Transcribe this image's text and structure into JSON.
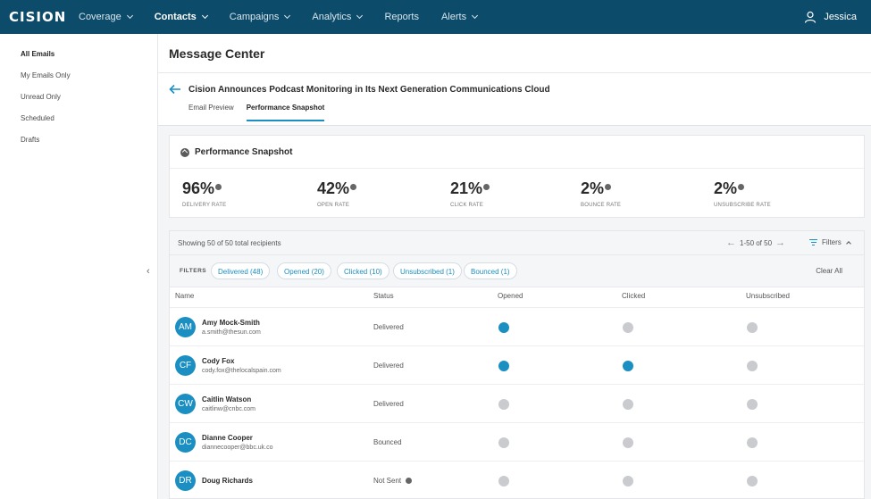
{
  "app": {
    "logo_text": "CISION"
  },
  "nav": {
    "items": [
      {
        "label": "Coverage",
        "dropdown": true,
        "active": false
      },
      {
        "label": "Contacts",
        "dropdown": true,
        "active": true
      },
      {
        "label": "Campaigns",
        "dropdown": true,
        "active": false
      },
      {
        "label": "Analytics",
        "dropdown": true,
        "active": false
      },
      {
        "label": "Reports",
        "dropdown": false,
        "active": false
      },
      {
        "label": "Alerts",
        "dropdown": true,
        "active": false
      }
    ],
    "user_name": "Jessica",
    "user_icon": "user-icon"
  },
  "sidebar": {
    "items": [
      {
        "label": "All Emails",
        "active": true
      },
      {
        "label": "My Emails Only",
        "active": false
      },
      {
        "label": "Unread Only",
        "active": false
      },
      {
        "label": "Scheduled",
        "active": false
      },
      {
        "label": "Drafts",
        "active": false
      }
    ]
  },
  "page": {
    "title": "Message Center"
  },
  "email": {
    "title": "Cision Announces Podcast Monitoring in Its Next Generation Communications Cloud",
    "tabs": [
      {
        "label": "Email Preview",
        "active": false
      },
      {
        "label": "Performance Snapshot",
        "active": true
      }
    ]
  },
  "snapshot": {
    "title": "Performance Snapshot",
    "metrics": [
      {
        "value": "96%",
        "label": "DELIVERY RATE"
      },
      {
        "value": "42%",
        "label": "OPEN RATE"
      },
      {
        "value": "21%",
        "label": "CLICK RATE"
      },
      {
        "value": "2%",
        "label": "BOUNCE RATE"
      },
      {
        "value": "2%",
        "label": "UNSUBSCRIBE RATE"
      }
    ]
  },
  "recipients": {
    "showing": "Showing 50 of 50 total recipients",
    "pager": "1-50 of 50",
    "filters_button": "Filters",
    "filters_label": "FILTERS",
    "chips": [
      "Delivered (48)",
      "Opened (20)",
      "Clicked (10)",
      "Unsubscribed (1)",
      "Bounced (1)"
    ],
    "clear_all": "Clear All",
    "columns": [
      "Name",
      "Status",
      "Opened",
      "Clicked",
      "Unsubscribed"
    ],
    "rows": [
      {
        "initials": "AM",
        "name": "Amy Mock-Smith",
        "email": "a.smith@thesun.com",
        "status": "Delivered",
        "opened": true,
        "clicked": false,
        "unsubscribed": false,
        "status_info": false
      },
      {
        "initials": "CF",
        "name": "Cody Fox",
        "email": "cody.fox@thelocalspain.com",
        "status": "Delivered",
        "opened": true,
        "clicked": true,
        "unsubscribed": false,
        "status_info": false
      },
      {
        "initials": "CW",
        "name": "Caitlin Watson",
        "email": "caitlinw@cnbc.com",
        "status": "Delivered",
        "opened": false,
        "clicked": false,
        "unsubscribed": false,
        "status_info": false
      },
      {
        "initials": "DC",
        "name": "Dianne Cooper",
        "email": "diannecooper@bbc.uk.co",
        "status": "Bounced",
        "opened": false,
        "clicked": false,
        "unsubscribed": false,
        "status_info": false
      },
      {
        "initials": "DR",
        "name": "Doug Richards",
        "email": "",
        "status": "Not Sent",
        "opened": false,
        "clicked": false,
        "unsubscribed": false,
        "status_info": true
      }
    ]
  },
  "colors": {
    "nav_bg": "#0d4b6a",
    "accent": "#1b8fc2",
    "indicator_off": "#c9cbcf"
  }
}
